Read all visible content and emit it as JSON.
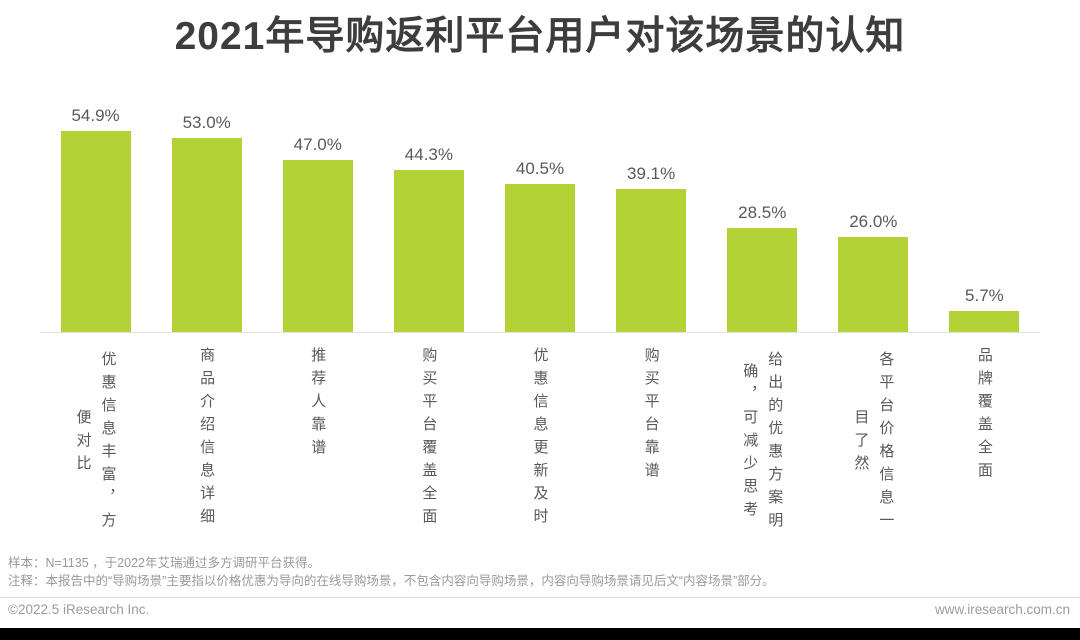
{
  "chart_data": {
    "type": "bar",
    "title": "2021年导购返利平台用户对该场景的认知",
    "categories": [
      "优惠信息丰富，方便对比",
      "商品介绍信息详细",
      "推荐人靠谱",
      "购买平台覆盖全面",
      "优惠信息更新及时",
      "购买平台靠谱",
      "给出的优惠方案明确，可减少思考",
      "各平台价格信息一目了然",
      "品牌覆盖全面"
    ],
    "values": [
      54.9,
      53.0,
      47.0,
      44.3,
      40.5,
      39.1,
      28.5,
      26.0,
      5.7
    ],
    "value_labels": [
      "54.9%",
      "53.0%",
      "47.0%",
      "44.3%",
      "40.5%",
      "39.1%",
      "28.5%",
      "26.0%",
      "5.7%"
    ],
    "xlabel": "",
    "ylabel": "",
    "ylim": [
      0,
      60
    ],
    "grid": false,
    "legend": "none",
    "bar_color": "#b2d235",
    "value_label_position": "above-bar",
    "category_label_orientation": "vertical"
  },
  "notes": {
    "sample_note": "样本：N=1135 ，于2022年艾瑞通过多方调研平台获得。",
    "annotation_note": "注释：本报告中的“导购场景”主要指以价格优惠为导向的在线导购场景，不包含内容向导购场景，内容向导购场景请见后文“内容场景”部分。"
  },
  "footer": {
    "copyright": "©2022.5 iResearch Inc.",
    "website": "www.iresearch.com.cn"
  },
  "colors": {
    "bar": "#b2d235",
    "title_text": "#3d3d3d",
    "label_text": "#595959",
    "note_text": "#9a9a9a",
    "footer_text": "#9c9c9c",
    "baseline": "#e4e4e4",
    "bottom_bar": "#000000"
  }
}
